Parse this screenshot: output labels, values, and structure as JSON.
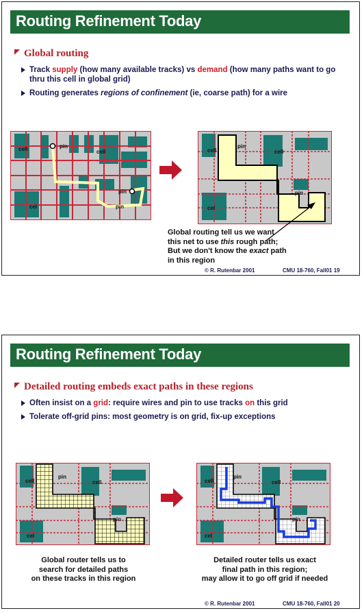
{
  "slide1": {
    "title": "Routing Refinement Today",
    "bullet": "Global routing",
    "sub1": {
      "p1": "Track ",
      "supply": "supply",
      "p2": " (how many available tracks) vs ",
      "demand": "demand",
      "p3": " (how many paths want to go thru this cell in global grid)"
    },
    "sub2": {
      "p1": "Routing generates ",
      "italic": "regions of confinement",
      "p2": " (ie, coarse path) for a wire"
    },
    "labels": {
      "cell": "cell",
      "pin": "pin",
      "cel": "cel"
    },
    "caption": {
      "l1": "Global routing tell us we want",
      "l2a": "this net to use ",
      "l2i": "this",
      "l2b": " rough path;",
      "l3a": "But we don't know the ",
      "l3i": "exact",
      "l3b": " path",
      "l4": "in this region"
    },
    "footer_left": "© R. Rutenbar 2001",
    "footer_right": "CMU 18-760, Fall01   19"
  },
  "slide2": {
    "title": "Routing Refinement Today",
    "bullet": "Detailed routing embeds exact paths in these regions",
    "sub1": {
      "p1": "Often insist on a ",
      "grid": "grid",
      "p2": ":  require wires and pin to use tracks ",
      "on": "on",
      "p3": " this grid"
    },
    "sub2": "Tolerate off-grid pins:  most geometry is on grid, fix-up exceptions",
    "labels": {
      "cell": "cell",
      "pin": "pin",
      "cel": "cel"
    },
    "caption_left": [
      "Global router tells us to",
      "search for detailed paths",
      "on these tracks in this region"
    ],
    "caption_right": [
      "Detailed router tells us exact",
      "final path in this region;",
      "may allow it to go off grid if needed"
    ],
    "footer_left": "© R. Rutenbar 2001",
    "footer_right": "CMU 18-760, Fall01   20"
  },
  "colors": {
    "title_bg": "#1f6b3a",
    "bullet": "#b5212b",
    "highlight_red": "#d01c28",
    "subtext": "#1a1a50",
    "cell_teal": "#1b7a74",
    "grid_red": "#c8283a",
    "region_yellow": "#ffffc0",
    "path_blue": "#1a3ee0",
    "arrow_red": "#c0182a"
  }
}
